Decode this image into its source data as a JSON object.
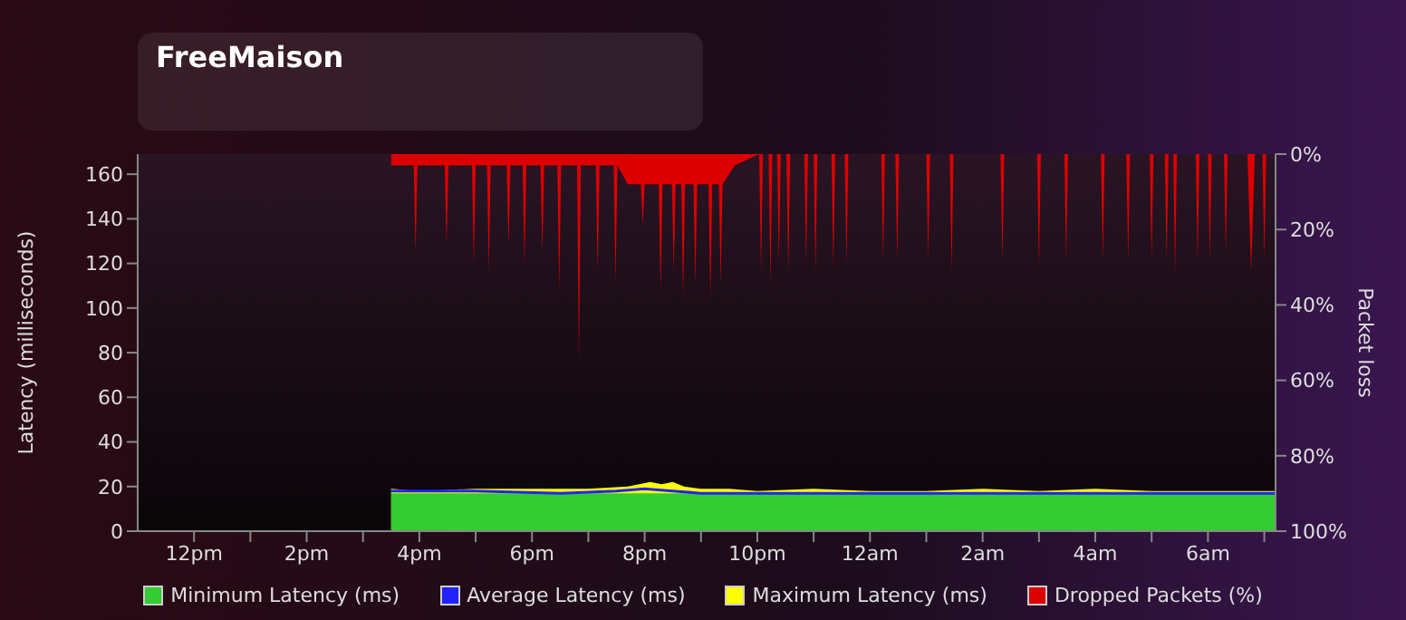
{
  "chart_data": {
    "type": "area",
    "title": "FreeMaison",
    "ylabel": "Latency (milliseconds)",
    "y2label": "Packet loss",
    "xlim": [
      "--01-01T11:00",
      "--01-02T07:12"
    ],
    "xticks": [
      {
        "value": "--01-01T12:00",
        "label": "12pm"
      },
      {
        "value": "--01-01T13:00",
        "label": null
      },
      {
        "value": "--01-01T14:00",
        "label": "2pm"
      },
      {
        "value": "--01-01T15:00",
        "label": null
      },
      {
        "value": "--01-01T16:00",
        "label": "4pm"
      },
      {
        "value": "--01-01T17:00",
        "label": null
      },
      {
        "value": "--01-01T18:00",
        "label": "6pm"
      },
      {
        "value": "--01-01T19:00",
        "label": null
      },
      {
        "value": "--01-01T20:00",
        "label": "8pm"
      },
      {
        "value": "--01-01T21:00",
        "label": null
      },
      {
        "value": "--01-01T22:00",
        "label": "10pm"
      },
      {
        "value": "--01-01T23:00",
        "label": null
      },
      {
        "value": "--01-02T00:00",
        "label": "12am"
      },
      {
        "value": "--01-02T01:00",
        "label": null
      },
      {
        "value": "--01-02T02:00",
        "label": "2am"
      },
      {
        "value": "--01-02T03:00",
        "label": null
      },
      {
        "value": "--01-02T04:00",
        "label": "4am"
      },
      {
        "value": "--01-02T05:00",
        "label": null
      },
      {
        "value": "--01-02T06:00",
        "label": "6am"
      },
      {
        "value": "--01-02T07:00",
        "label": null
      }
    ],
    "ylim": [
      0,
      169
    ],
    "yticks": [
      0,
      20,
      40,
      60,
      80,
      100,
      120,
      140,
      160
    ],
    "y2lim": [
      100,
      0
    ],
    "y2ticks": [
      {
        "value": 0,
        "label": "0%"
      },
      {
        "value": 20,
        "label": "20%"
      },
      {
        "value": 40,
        "label": "40%"
      },
      {
        "value": 60,
        "label": "60%"
      },
      {
        "value": 80,
        "label": "80%"
      },
      {
        "value": 100,
        "label": "100%"
      }
    ],
    "grid": false,
    "legend": "bottom",
    "series": [
      {
        "name": "Minimum Latency (ms)",
        "color": "#33cc33",
        "x": [
          "--01-01T15:30",
          "--01-02T07:12"
        ],
        "values": [
          17,
          17
        ]
      },
      {
        "name": "Average Latency (ms)",
        "type": "line",
        "color": "#2222ff",
        "x": [
          "--01-01T15:30",
          "--01-01T17:00",
          "--01-01T18:30",
          "--01-01T19:30",
          "--01-01T20:00",
          "--01-01T20:30",
          "--01-01T21:00",
          "--01-01T22:00",
          "--01-02T01:00",
          "--01-02T07:12"
        ],
        "values": [
          18,
          18,
          17,
          18,
          19,
          18,
          17,
          17,
          17,
          17
        ]
      },
      {
        "name": "Maximum Latency (ms)",
        "color": "#ffff00",
        "x": [
          "--01-01T15:30",
          "--01-01T16:00",
          "--01-01T17:00",
          "--01-01T18:00",
          "--01-01T19:00",
          "--01-01T19:42",
          "--01-01T19:54",
          "--01-01T20:06",
          "--01-01T20:18",
          "--01-01T20:30",
          "--01-01T20:42",
          "--01-01T21:00",
          "--01-01T21:30",
          "--01-01T22:00",
          "--01-01T23:00",
          "--01-02T00:00",
          "--01-02T01:00",
          "--01-02T02:00",
          "--01-02T03:00",
          "--01-02T04:00",
          "--01-02T05:00",
          "--01-02T06:00",
          "--01-02T07:12"
        ],
        "values": [
          19,
          18,
          19,
          19,
          19,
          20,
          21,
          22,
          21,
          22,
          20,
          19,
          19,
          18,
          19,
          18,
          18,
          19,
          18,
          19,
          18,
          18,
          18
        ]
      },
      {
        "name": "Dropped Packets (%)",
        "axis": "y2",
        "color": "#dd0000",
        "x": [
          "--01-01T15:30",
          "--01-01T15:54",
          "--01-01T15:56",
          "--01-01T15:58",
          "--01-01T16:27",
          "--01-01T16:29",
          "--01-01T16:31",
          "--01-01T16:56",
          "--01-01T16:58",
          "--01-01T17:00",
          "--01-01T17:12",
          "--01-01T17:14",
          "--01-01T17:16",
          "--01-01T17:33",
          "--01-01T17:35",
          "--01-01T17:37",
          "--01-01T17:50",
          "--01-01T17:52",
          "--01-01T17:54",
          "--01-01T18:09",
          "--01-01T18:11",
          "--01-01T18:13",
          "--01-01T18:27",
          "--01-01T18:29",
          "--01-01T18:31",
          "--01-01T18:48",
          "--01-01T18:50",
          "--01-01T18:52",
          "--01-01T19:08",
          "--01-01T19:10",
          "--01-01T19:12",
          "--01-01T19:27",
          "--01-01T19:29",
          "--01-01T19:31",
          "--01-01T19:42",
          "--01-01T19:56",
          "--01-01T19:58",
          "--01-01T20:00",
          "--01-01T20:15",
          "--01-01T20:17",
          "--01-01T20:19",
          "--01-01T20:29",
          "--01-01T20:31",
          "--01-01T20:33",
          "--01-01T20:39",
          "--01-01T20:41",
          "--01-01T20:43",
          "--01-01T20:52",
          "--01-01T20:54",
          "--01-01T20:56",
          "--01-01T21:08",
          "--01-01T21:10",
          "--01-01T21:12",
          "--01-01T21:19",
          "--01-01T21:21",
          "--01-01T21:23",
          "--01-01T21:36",
          "--01-01T22:02",
          "--01-01T22:04",
          "--01-01T22:06",
          "--01-01T22:12",
          "--01-01T22:14",
          "--01-01T22:16",
          "--01-01T22:21",
          "--01-01T22:23",
          "--01-01T22:25",
          "--01-01T22:31",
          "--01-01T22:33",
          "--01-01T22:35",
          "--01-01T22:50",
          "--01-01T22:52",
          "--01-01T22:54",
          "--01-01T23:00",
          "--01-01T23:02",
          "--01-01T23:04",
          "--01-01T23:19",
          "--01-01T23:21",
          "--01-01T23:23",
          "--01-01T23:33",
          "--01-01T23:35",
          "--01-01T23:37",
          "--01-02T00:12",
          "--01-02T00:14",
          "--01-02T00:16",
          "--01-02T00:27",
          "--01-02T00:29",
          "--01-02T00:31",
          "--01-02T01:00",
          "--01-02T01:02",
          "--01-02T01:04",
          "--01-02T01:25",
          "--01-02T01:27",
          "--01-02T01:29",
          "--01-02T02:19",
          "--01-02T02:21",
          "--01-02T02:23",
          "--01-02T02:58",
          "--01-02T03:00",
          "--01-02T03:02",
          "--01-02T03:27",
          "--01-02T03:29",
          "--01-02T03:31",
          "--01-02T04:06",
          "--01-02T04:08",
          "--01-02T04:10",
          "--01-02T04:33",
          "--01-02T04:35",
          "--01-02T04:37",
          "--01-02T04:58",
          "--01-02T05:00",
          "--01-02T05:02",
          "--01-02T05:14",
          "--01-02T05:16",
          "--01-02T05:18",
          "--01-02T05:23",
          "--01-02T05:25",
          "--01-02T05:27",
          "--01-02T05:47",
          "--01-02T05:49",
          "--01-02T05:51",
          "--01-02T06:00",
          "--01-02T06:02",
          "--01-02T06:04",
          "--01-02T06:17",
          "--01-02T06:19",
          "--01-02T06:21",
          "--01-02T06:42",
          "--01-02T06:46",
          "--01-02T06:50",
          "--01-02T06:58",
          "--01-02T07:00",
          "--01-02T07:02",
          "--01-02T07:12"
        ],
        "values": [
          3,
          3,
          26,
          3,
          3,
          24,
          3,
          3,
          29,
          3,
          3,
          31,
          3,
          3,
          24,
          3,
          3,
          29,
          3,
          3,
          26,
          3,
          3,
          36,
          3,
          3,
          55,
          3,
          3,
          31,
          3,
          3,
          34,
          3,
          8,
          8,
          19,
          8,
          8,
          36,
          8,
          8,
          31,
          8,
          8,
          38,
          8,
          8,
          34,
          8,
          8,
          38,
          8,
          8,
          34,
          8,
          3,
          0,
          31,
          0,
          0,
          34,
          0,
          0,
          29,
          0,
          0,
          31,
          0,
          0,
          29,
          0,
          0,
          31,
          0,
          0,
          30,
          0,
          0,
          29,
          0,
          0,
          28,
          0,
          0,
          28,
          0,
          0,
          28,
          0,
          0,
          31,
          0,
          0,
          28,
          0,
          0,
          30,
          0,
          0,
          28,
          0,
          0,
          28,
          0,
          0,
          28,
          0,
          0,
          28,
          0,
          0,
          28,
          0,
          0,
          31,
          0,
          0,
          28,
          0,
          0,
          28,
          0,
          0,
          26,
          0,
          0,
          31,
          0,
          0,
          28,
          0,
          0
        ]
      }
    ]
  }
}
